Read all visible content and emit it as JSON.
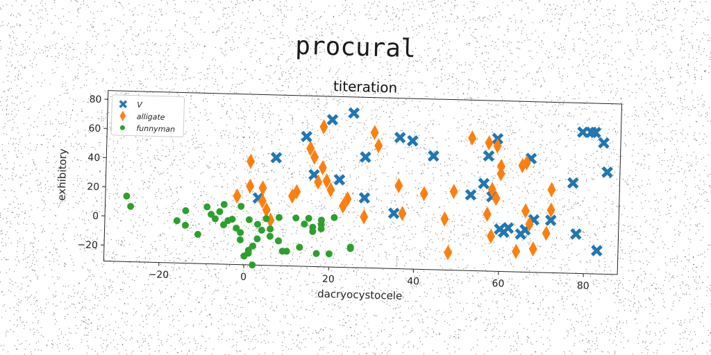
{
  "suptitle": "procural",
  "chart_data": {
    "type": "scatter",
    "title": "titeration",
    "xlabel": "dacryocystocele",
    "ylabel": "exhibitory",
    "xlim": [
      -33,
      88
    ],
    "ylim": [
      -31,
      86
    ],
    "xticks": [
      -20,
      0,
      20,
      40,
      60,
      80
    ],
    "yticks": [
      -20,
      0,
      20,
      40,
      60,
      80
    ],
    "legend": {
      "placement": "top-left"
    },
    "grid": false,
    "series": [
      {
        "name": "V",
        "marker": "x",
        "color": "#1f77b4",
        "points": [
          [
            3,
            15
          ],
          [
            7,
            43
          ],
          [
            14,
            58
          ],
          [
            16,
            32
          ],
          [
            20,
            70
          ],
          [
            22,
            29
          ],
          [
            25,
            75
          ],
          [
            28,
            45
          ],
          [
            28,
            17
          ],
          [
            35,
            7
          ],
          [
            36,
            59
          ],
          [
            39,
            57
          ],
          [
            44,
            47
          ],
          [
            53,
            21
          ],
          [
            56,
            29
          ],
          [
            57,
            48
          ],
          [
            58,
            20
          ],
          [
            59,
            60
          ],
          [
            60,
            -2
          ],
          [
            61,
            -4
          ],
          [
            62,
            -1
          ],
          [
            65,
            -5
          ],
          [
            66,
            -2
          ],
          [
            67,
            47
          ],
          [
            68,
            5
          ],
          [
            72,
            5
          ],
          [
            77,
            31
          ],
          [
            78,
            -4
          ],
          [
            79,
            66
          ],
          [
            81,
            66
          ],
          [
            82,
            66
          ],
          [
            84,
            59
          ],
          [
            83,
            -15
          ],
          [
            85,
            39
          ]
        ]
      },
      {
        "name": "alligate",
        "marker": "d",
        "color": "#ff7f0e",
        "points": [
          [
            -2,
            16
          ],
          [
            1,
            40
          ],
          [
            1,
            23
          ],
          [
            4,
            22
          ],
          [
            4,
            13
          ],
          [
            5,
            7
          ],
          [
            6,
            0
          ],
          [
            11,
            17
          ],
          [
            12,
            20
          ],
          [
            15,
            50
          ],
          [
            16,
            44
          ],
          [
            17,
            27
          ],
          [
            18,
            65
          ],
          [
            18,
            37
          ],
          [
            19,
            28
          ],
          [
            20,
            22
          ],
          [
            23,
            11
          ],
          [
            24,
            16
          ],
          [
            28,
            4
          ],
          [
            30,
            62
          ],
          [
            31,
            53
          ],
          [
            36,
            26
          ],
          [
            37,
            7
          ],
          [
            42,
            21
          ],
          [
            47,
            4
          ],
          [
            48,
            -19
          ],
          [
            49,
            23
          ],
          [
            53,
            60
          ],
          [
            57,
            57
          ],
          [
            57,
            8
          ],
          [
            58,
            25
          ],
          [
            59,
            55
          ],
          [
            59,
            19
          ],
          [
            60,
            41
          ],
          [
            60,
            36
          ],
          [
            58,
            -7
          ],
          [
            64,
            -17
          ],
          [
            65,
            42
          ],
          [
            66,
            44
          ],
          [
            66,
            11
          ],
          [
            67,
            2
          ],
          [
            68,
            -15
          ],
          [
            71,
            -4
          ],
          [
            72,
            12
          ],
          [
            72,
            26
          ]
        ]
      },
      {
        "name": "funnyman",
        "marker": "o",
        "color": "#2ca02c",
        "points": [
          [
            -28,
            14
          ],
          [
            -27,
            7
          ],
          [
            -16,
            -2
          ],
          [
            -14,
            -5
          ],
          [
            -14,
            5
          ],
          [
            -11,
            -11
          ],
          [
            -9,
            8
          ],
          [
            -8,
            3
          ],
          [
            -7,
            0
          ],
          [
            -6,
            5
          ],
          [
            -5,
            10
          ],
          [
            -5,
            -4
          ],
          [
            -4,
            -1
          ],
          [
            -3,
            0
          ],
          [
            -2,
            -6
          ],
          [
            -1,
            9
          ],
          [
            -1,
            -9
          ],
          [
            -1,
            -14
          ],
          [
            0,
            -25
          ],
          [
            1,
            -21
          ],
          [
            1,
            -23
          ],
          [
            1,
            0
          ],
          [
            2,
            -18
          ],
          [
            2,
            -31
          ],
          [
            3,
            -13
          ],
          [
            3,
            -3
          ],
          [
            4,
            -7
          ],
          [
            5,
            1
          ],
          [
            6,
            -11
          ],
          [
            6,
            -6
          ],
          [
            8,
            -14
          ],
          [
            8,
            2
          ],
          [
            9,
            -21
          ],
          [
            10,
            -21
          ],
          [
            12,
            2
          ],
          [
            13,
            -18
          ],
          [
            14,
            -2
          ],
          [
            15,
            2
          ],
          [
            16,
            -4
          ],
          [
            16,
            -7
          ],
          [
            17,
            -22
          ],
          [
            18,
            -5
          ],
          [
            18,
            -2
          ],
          [
            18,
            1
          ],
          [
            20,
            -22
          ],
          [
            21,
            3
          ],
          [
            25,
            -17
          ],
          [
            25,
            -18
          ]
        ]
      }
    ]
  }
}
